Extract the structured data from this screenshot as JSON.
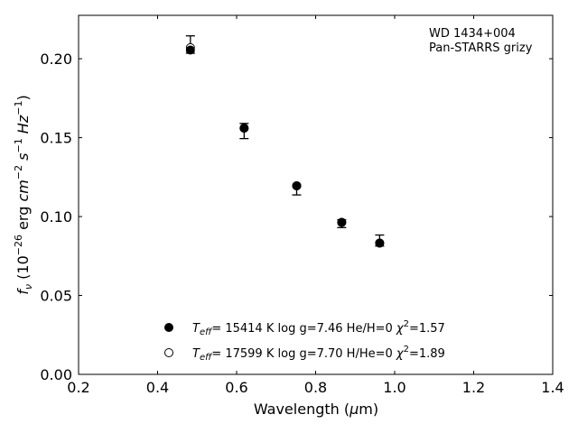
{
  "chart_data": {
    "type": "scatter",
    "annotation_lines": [
      "WD 1434+004",
      "Pan-STARRS grizy"
    ],
    "xlabel_prefix": "Wavelength (",
    "xlabel_unit": "μ",
    "xlabel_suffix": "m)",
    "ylabel": {
      "f": "f",
      "nu": "ν",
      "open": " (10",
      "exp": "−26",
      "erg": " erg ",
      "cm": "cm",
      "cmexp": "−2",
      "s": " s",
      "sexp": "−1",
      "hz": " Hz",
      "hzexp": "−1",
      "close": ")"
    },
    "xlim": [
      0.2,
      1.4
    ],
    "ylim": [
      0.0,
      0.2275
    ],
    "xticks": [
      0.2,
      0.4,
      0.6,
      0.8,
      1.0,
      1.2,
      1.4
    ],
    "xtick_labels": [
      "0.2",
      "0.4",
      "0.6",
      "0.8",
      "1.0",
      "1.2",
      "1.4"
    ],
    "yticks": [
      0.0,
      0.05,
      0.1,
      0.15,
      0.2
    ],
    "ytick_labels": [
      "0.00",
      "0.05",
      "0.10",
      "0.15",
      "0.20"
    ],
    "grid": false,
    "legend_position": "lower-center",
    "observed": {
      "x": [
        0.483,
        0.619,
        0.752,
        0.866,
        0.962
      ],
      "y": [
        0.209,
        0.1542,
        0.1165,
        0.0955,
        0.0848
      ],
      "err": [
        0.0055,
        0.0048,
        0.0028,
        0.0025,
        0.0035
      ]
    },
    "series": [
      {
        "symbol": "filled-circle",
        "teff_label": "T",
        "teff_sub": "eff",
        "text": "= 15414 K  log g=7.46  He/H=0  ",
        "chi_symbol": "χ",
        "chi_exp": "2",
        "chi_value": "=1.57",
        "x": [
          0.483,
          0.619,
          0.752,
          0.866,
          0.962
        ],
        "y": [
          0.2055,
          0.156,
          0.1195,
          0.0963,
          0.0832
        ]
      },
      {
        "symbol": "open-circle",
        "teff_label": "T",
        "teff_sub": "eff",
        "text": "= 17599 K  log g=7.70  H/He=0  ",
        "chi_symbol": "χ",
        "chi_exp": "2",
        "chi_value": "=1.89",
        "x": [
          0.483,
          0.619,
          0.752,
          0.866,
          0.962
        ],
        "y": [
          0.207,
          0.156,
          0.1195,
          0.0963,
          0.0832
        ]
      }
    ]
  }
}
